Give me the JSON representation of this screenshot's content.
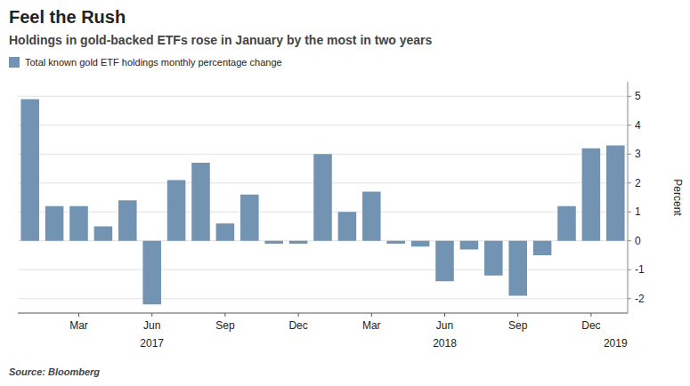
{
  "chart_data": {
    "type": "bar",
    "title": "Feel the Rush",
    "subtitle": "Holdings in gold-backed ETFs rose in January by the most in two years",
    "source": "Source: Bloomberg",
    "ylabel": "Percent",
    "categories": [
      null,
      null,
      "Mar",
      null,
      null,
      "Jun",
      null,
      null,
      "Sep",
      null,
      null,
      "Dec",
      null,
      null,
      "Mar",
      null,
      null,
      "Jun",
      null,
      null,
      "Sep",
      null,
      null,
      "Dec",
      null
    ],
    "series": [
      {
        "name": "Total known gold ETF holdings monthly percentage change",
        "color": "#7393b3",
        "values": [
          4.9,
          1.2,
          1.2,
          0.5,
          1.4,
          -2.2,
          2.1,
          2.7,
          0.6,
          1.6,
          -0.1,
          -0.1,
          3.0,
          1.0,
          1.7,
          -0.1,
          -0.2,
          -1.4,
          -0.3,
          -1.2,
          -1.9,
          -0.5,
          1.2,
          3.2,
          3.3
        ]
      }
    ],
    "ylim": [
      -2.5,
      5.5
    ],
    "yticks": [
      -2,
      -1,
      0,
      1,
      2,
      3,
      4,
      5
    ],
    "grid": true,
    "legend": "top",
    "annotations": [
      {
        "text": "2017",
        "x": 5
      },
      {
        "text": "2018",
        "x": 17
      },
      {
        "text": "2019",
        "x": 24
      }
    ]
  }
}
